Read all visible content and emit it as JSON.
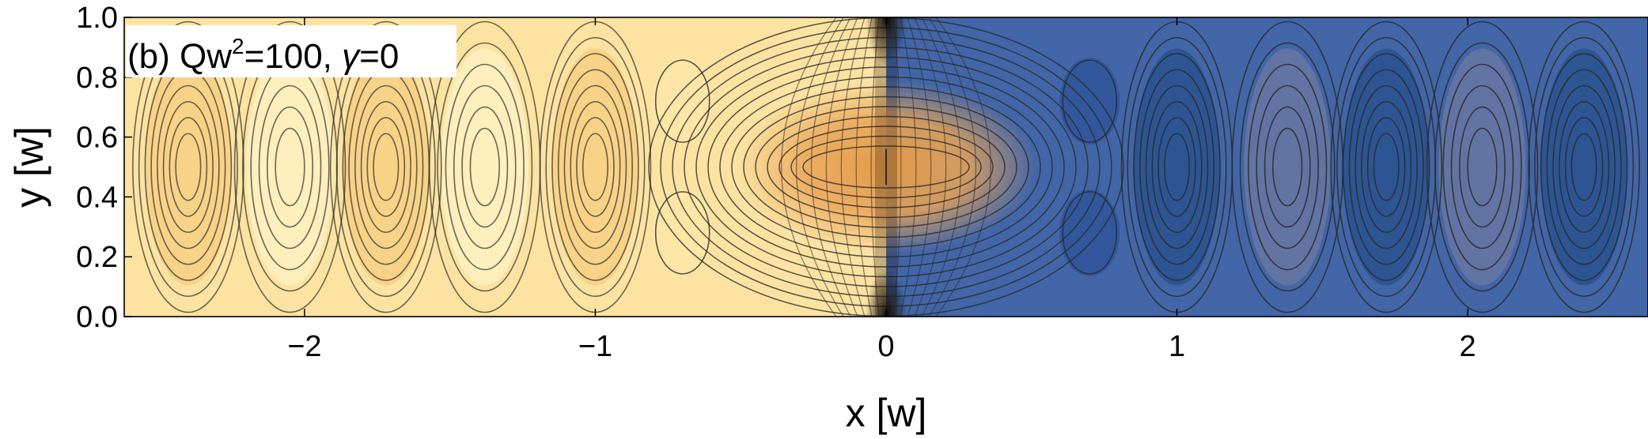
{
  "chart_data": {
    "type": "heatmap",
    "subtype": "contour",
    "annotation": {
      "prefix": "(b) Qw",
      "superscript": "2",
      "middle": "=100, ",
      "symbol": "γ",
      "suffix": "=0"
    },
    "xlabel": "x [w]",
    "ylabel": "y [w]",
    "xlim": [
      -2.62,
      2.62
    ],
    "ylim": [
      0.0,
      1.0
    ],
    "x_ticks": [
      -2,
      -1,
      0,
      1,
      2
    ],
    "x_tick_labels": [
      "−2",
      "−1",
      "0",
      "1",
      "2"
    ],
    "y_ticks": [
      0.0,
      0.2,
      0.4,
      0.6,
      0.8,
      1.0
    ],
    "y_tick_labels": [
      "0.0",
      "0.2",
      "0.4",
      "0.6",
      "0.8",
      "1.0"
    ],
    "grid": false,
    "colors": {
      "left_region": "#fde3a2",
      "right_region": "#4266a8",
      "center_band": "#e9a14f",
      "singular_points": "#111111",
      "contour_lines": "#2b2b2b"
    },
    "regions": [
      {
        "x_range": [
          -2.62,
          0
        ],
        "fill": "left_region"
      },
      {
        "x_range": [
          0,
          2.62
        ],
        "fill": "right_region"
      }
    ],
    "vortex_centers_x": [
      -2.4,
      -2.05,
      -1.72,
      -1.38,
      -1.0,
      1.0,
      1.38,
      1.72,
      2.05,
      2.4
    ],
    "vortex_center_y": 0.5,
    "saddle_x": [
      -0.7,
      0.7
    ],
    "saddle_lobes_y": [
      0.28,
      0.72
    ],
    "singular_points": [
      {
        "x": 0,
        "y": 0.0
      },
      {
        "x": 0,
        "y": 1.0
      }
    ]
  }
}
